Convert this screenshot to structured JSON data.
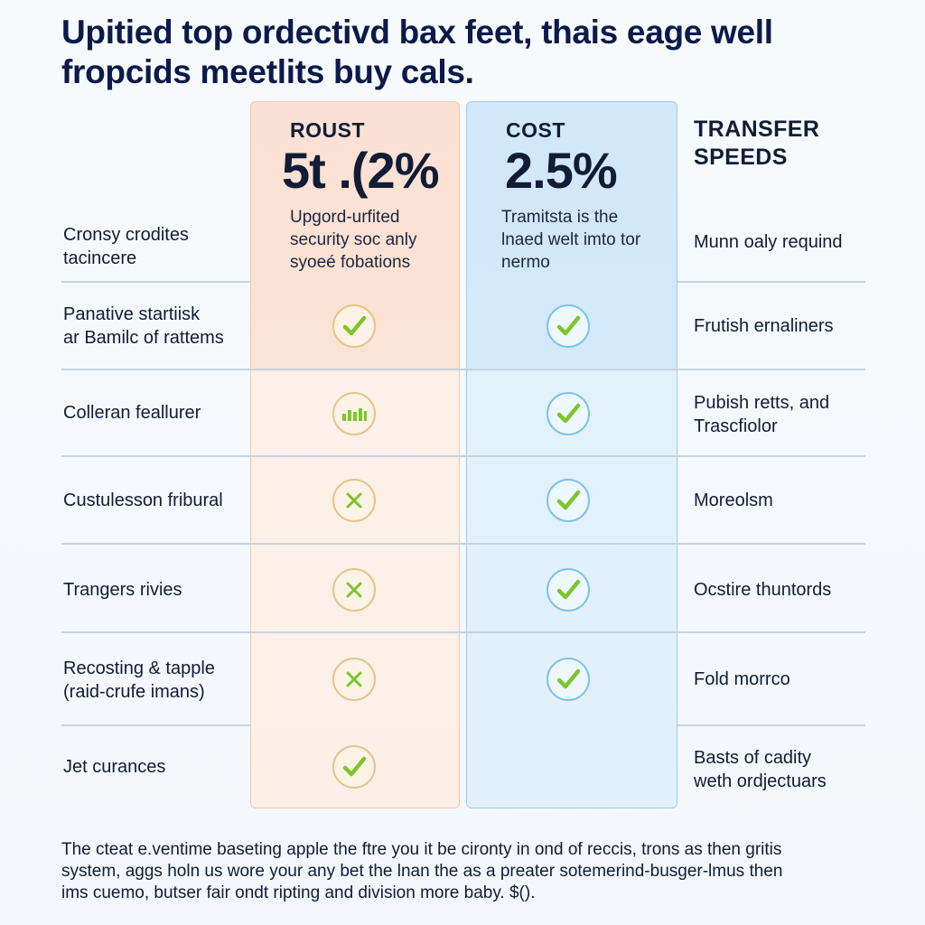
{
  "title": {
    "line1": "Upitied top ordectivd bax feet, thais eage well",
    "line2": "fropcids meetlits buy cals."
  },
  "columns": {
    "a": {
      "label": "ROUST",
      "value": "5t .(2%",
      "desc": [
        "Upgord-urfited",
        "security soc anly",
        "syoeé fobations"
      ]
    },
    "b": {
      "label": "COST",
      "value": "2.5%",
      "desc": [
        "Tramitsta is the",
        "lnaed welt imto tor",
        "nermo"
      ]
    },
    "c": {
      "label_line1": "TRANSFER",
      "label_line2": "SPEEDS"
    }
  },
  "rows": [
    {
      "label": [
        "Cronsy crodites",
        "tacincere"
      ],
      "a": null,
      "b": null,
      "right": [
        "Munn oaly requind"
      ]
    },
    {
      "label": [
        "Panative startiisk",
        "ar Bamilc of rattems"
      ],
      "a": "check",
      "b": "check",
      "right": [
        "Frutish ernaliners"
      ]
    },
    {
      "label": [
        "Colleran feallurer"
      ],
      "a": "bars",
      "b": "check",
      "right": [
        "Pubish retts, and",
        "Trascfiolor"
      ]
    },
    {
      "label": [
        "Custulesson fribural"
      ],
      "a": "cross",
      "b": "check",
      "right": [
        "Moreolsm"
      ]
    },
    {
      "label": [
        "Trangers rivies"
      ],
      "a": "cross",
      "b": "check",
      "right": [
        "Ocstire thuntords"
      ]
    },
    {
      "label": [
        "Recosting & tapple",
        "(raid-crufe imans)"
      ],
      "a": "cross",
      "b": "check",
      "right": [
        "Fold morrco"
      ]
    },
    {
      "label": [
        "Jet curances"
      ],
      "a": "check",
      "b": null,
      "right": [
        "Basts of cadity",
        "weth ordjectuars"
      ]
    }
  ],
  "footer": {
    "line1": "The cteat e.ventime baseting apple the ftre you it be cironty in ond of reccis, trons as then gritis",
    "line2": "system, aggs holn us wore your any bet the lnan the as a preater sotemerind-busger-lmus then",
    "line3": "ims cuemo, butser fair ondt ripting and division more baby. $()."
  },
  "colors": {
    "title": "#0b1a4a",
    "peach_panel": "#fbe1d3",
    "blue_panel": "#d1e8fa",
    "check_green": "#7cc62a",
    "cross_green": "#7cc62a"
  }
}
